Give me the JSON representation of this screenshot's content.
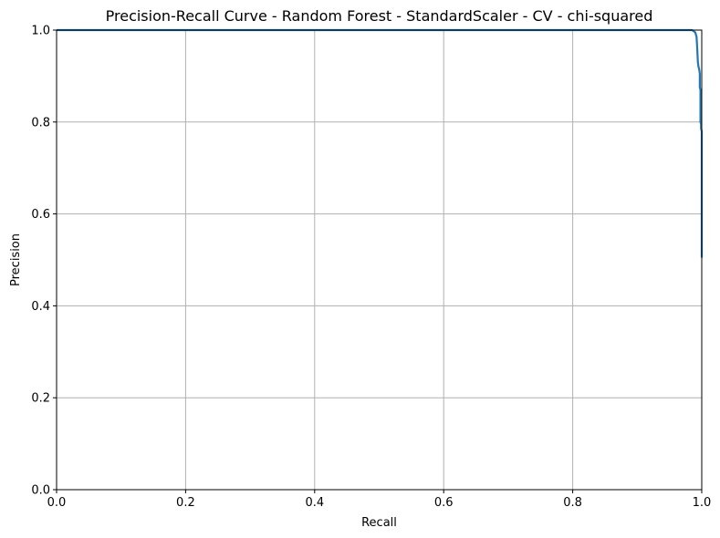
{
  "chart_data": {
    "type": "line",
    "title": "Precision-Recall Curve - Random Forest - StandardScaler - CV - chi-squared",
    "xlabel": "Recall",
    "ylabel": "Precision",
    "xlim": [
      0.0,
      1.0
    ],
    "ylim": [
      0.0,
      1.0
    ],
    "xticks": [
      "0.0",
      "0.2",
      "0.4",
      "0.6",
      "0.8",
      "1.0"
    ],
    "yticks": [
      "0.0",
      "0.2",
      "0.4",
      "0.6",
      "0.8",
      "1.0"
    ],
    "grid": true,
    "line_color": "#1f77b4",
    "series": [
      {
        "x": [
          0.0,
          0.985,
          0.99,
          0.992,
          0.993,
          0.994,
          0.995,
          0.996,
          0.997,
          0.997,
          0.998,
          0.998,
          0.999,
          0.999,
          1.0,
          1.0
        ],
        "y": [
          1.0,
          1.0,
          0.995,
          0.985,
          0.96,
          0.93,
          0.92,
          0.915,
          0.905,
          0.875,
          0.87,
          0.8,
          0.795,
          0.785,
          0.78,
          0.505
        ]
      }
    ]
  }
}
